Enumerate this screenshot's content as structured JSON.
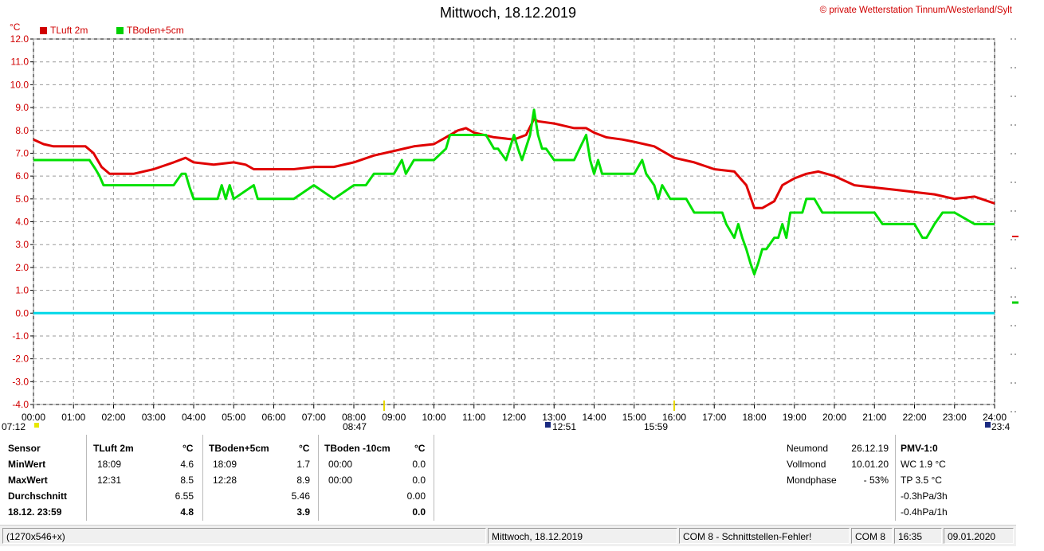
{
  "title": "Mittwoch, 18.12.2019",
  "copyright": "© private Wetterstation Tinnum/Westerland/Sylt",
  "chart_data": {
    "type": "line",
    "ylabel": "°C",
    "ylim": [
      -4,
      12
    ],
    "yticks": [
      "-4.0",
      "-3.0",
      "-2.0",
      "-1.0",
      "0.0",
      "1.0",
      "2.0",
      "3.0",
      "4.0",
      "5.0",
      "6.0",
      "7.0",
      "8.0",
      "9.0",
      "10.0",
      "11.0",
      "12.0"
    ],
    "xlim": [
      0,
      24
    ],
    "xticks": [
      "00:00",
      "01:00",
      "02:00",
      "03:00",
      "04:00",
      "05:00",
      "06:00",
      "07:00",
      "08:00",
      "09:00",
      "10:00",
      "11:00",
      "12:00",
      "13:00",
      "14:00",
      "15:00",
      "16:00",
      "17:00",
      "18:00",
      "19:00",
      "20:00",
      "21:00",
      "22:00",
      "23:00",
      "24:00"
    ],
    "grid": true,
    "legend_position": "top-left",
    "series": [
      {
        "name": "TLuft 2m",
        "color": "#e00000",
        "x": [
          0,
          0.25,
          0.5,
          1.0,
          1.3,
          1.5,
          1.7,
          1.9,
          2.5,
          3.0,
          3.5,
          3.8,
          4.0,
          4.5,
          5.0,
          5.3,
          5.5,
          6.0,
          6.5,
          7.0,
          7.5,
          8.0,
          8.5,
          9.0,
          9.5,
          10.0,
          10.3,
          10.6,
          10.8,
          11.0,
          11.5,
          12.0,
          12.3,
          12.5,
          12.6,
          13.0,
          13.5,
          13.8,
          14.0,
          14.3,
          14.7,
          15.0,
          15.5,
          15.8,
          16.0,
          16.5,
          17.0,
          17.5,
          17.8,
          18.0,
          18.2,
          18.5,
          18.7,
          19.0,
          19.3,
          19.6,
          20.0,
          20.5,
          21.0,
          21.5,
          22.0,
          22.5,
          23.0,
          23.5,
          24.0
        ],
        "y": [
          7.6,
          7.4,
          7.3,
          7.3,
          7.3,
          7.0,
          6.4,
          6.1,
          6.1,
          6.3,
          6.6,
          6.8,
          6.6,
          6.5,
          6.6,
          6.5,
          6.3,
          6.3,
          6.3,
          6.4,
          6.4,
          6.6,
          6.9,
          7.1,
          7.3,
          7.4,
          7.7,
          8.0,
          8.1,
          7.9,
          7.7,
          7.6,
          7.8,
          8.5,
          8.4,
          8.3,
          8.1,
          8.1,
          7.9,
          7.7,
          7.6,
          7.5,
          7.3,
          7.0,
          6.8,
          6.6,
          6.3,
          6.2,
          5.6,
          4.6,
          4.6,
          4.9,
          5.6,
          5.9,
          6.1,
          6.2,
          6.0,
          5.6,
          5.5,
          5.4,
          5.3,
          5.2,
          5.0,
          5.1,
          4.8
        ]
      },
      {
        "name": "TBoden+5cm",
        "color": "#00e000",
        "x": [
          0,
          1.4,
          1.55,
          1.65,
          1.75,
          2.0,
          3.0,
          3.5,
          3.7,
          3.8,
          3.9,
          4.0,
          4.6,
          4.7,
          4.8,
          4.9,
          5.0,
          5.5,
          5.6,
          5.7,
          6.0,
          6.5,
          7.0,
          7.5,
          8.0,
          8.3,
          8.5,
          9.0,
          9.2,
          9.3,
          9.5,
          10.0,
          10.3,
          10.4,
          10.5,
          11.0,
          11.3,
          11.5,
          11.6,
          11.8,
          12.0,
          12.1,
          12.2,
          12.4,
          12.5,
          12.6,
          12.7,
          12.8,
          13.0,
          13.5,
          13.8,
          13.9,
          14.0,
          14.1,
          14.2,
          14.5,
          15.0,
          15.2,
          15.3,
          15.5,
          15.6,
          15.7,
          15.9,
          16.0,
          16.3,
          16.5,
          17.0,
          17.2,
          17.3,
          17.5,
          17.6,
          17.7,
          17.8,
          17.9,
          18.0,
          18.1,
          18.2,
          18.3,
          18.5,
          18.6,
          18.7,
          18.8,
          18.9,
          19.0,
          19.2,
          19.3,
          19.5,
          19.7,
          20.0,
          20.5,
          21.0,
          21.2,
          21.3,
          21.5,
          22.0,
          22.2,
          22.3,
          22.5,
          22.7,
          23.0,
          23.5,
          24.0
        ],
        "y": [
          6.7,
          6.7,
          6.3,
          6.0,
          5.6,
          5.6,
          5.6,
          5.6,
          6.1,
          6.1,
          5.5,
          5.0,
          5.0,
          5.6,
          5.0,
          5.6,
          5.0,
          5.6,
          5.0,
          5.0,
          5.0,
          5.0,
          5.6,
          5.0,
          5.6,
          5.6,
          6.1,
          6.1,
          6.7,
          6.1,
          6.7,
          6.7,
          7.2,
          7.8,
          7.8,
          7.8,
          7.8,
          7.2,
          7.2,
          6.7,
          7.8,
          7.2,
          6.7,
          7.8,
          8.9,
          7.8,
          7.2,
          7.2,
          6.7,
          6.7,
          7.8,
          6.7,
          6.1,
          6.7,
          6.1,
          6.1,
          6.1,
          6.7,
          6.1,
          5.6,
          5.0,
          5.6,
          5.0,
          5.0,
          5.0,
          4.4,
          4.4,
          4.4,
          3.9,
          3.3,
          3.9,
          3.3,
          2.8,
          2.2,
          1.7,
          2.2,
          2.8,
          2.8,
          3.3,
          3.3,
          3.9,
          3.3,
          4.4,
          4.4,
          4.4,
          5.0,
          5.0,
          4.4,
          4.4,
          4.4,
          4.4,
          3.9,
          3.9,
          3.9,
          3.9,
          3.3,
          3.3,
          3.9,
          4.4,
          4.4,
          3.9,
          3.9
        ]
      },
      {
        "name": "TBoden -10cm",
        "color": "#00d8e8",
        "x": [
          0,
          24
        ],
        "y": [
          0,
          0
        ]
      }
    ],
    "markers": {
      "left_time": "07:12",
      "top": "08:47",
      "mid1": "12:51",
      "mid2": "15:59",
      "right": "23:4"
    }
  },
  "stats": {
    "header": {
      "sensor": "Sensor",
      "s1": "TLuft 2m",
      "s2": "TBoden+5cm",
      "s3": "TBoden -10cm",
      "unit": "°C"
    },
    "rows": [
      {
        "label": "MinWert",
        "t1": "18:09",
        "v1": "4.6",
        "t2": "18:09",
        "v2": "1.7",
        "t3": "00:00",
        "v3": "0.0"
      },
      {
        "label": "MaxWert",
        "t1": "12:31",
        "v1": "8.5",
        "t2": "12:28",
        "v2": "8.9",
        "t3": "00:00",
        "v3": "0.0"
      },
      {
        "label": "Durchschnitt",
        "t1": "",
        "v1": "6.55",
        "t2": "",
        "v2": "5.46",
        "t3": "",
        "v3": "0.00"
      },
      {
        "label": "18.12. 23:59",
        "t1": "",
        "v1": "4.8",
        "t2": "",
        "v2": "3.9",
        "t3": "",
        "v3": "0.0"
      }
    ],
    "moon": [
      {
        "label": "Neumond",
        "value": "26.12.19"
      },
      {
        "label": "Vollmond",
        "value": "10.01.20"
      },
      {
        "label": "Mondphase",
        "value": "- 53%"
      }
    ],
    "pmv": {
      "title": "PMV-1:0",
      "lines": [
        "WC 1.9 °C",
        "TP 3.5 °C",
        "-0.3hPa/3h",
        "-0.4hPa/1h"
      ]
    }
  },
  "statusbar": {
    "size": "(1270x546+x)",
    "date": "Mittwoch, 18.12.2019",
    "com_error": "COM 8 - Schnittstellen-Fehler!",
    "com": "COM 8",
    "time": "16:35",
    "date2": "09.01.2020"
  }
}
